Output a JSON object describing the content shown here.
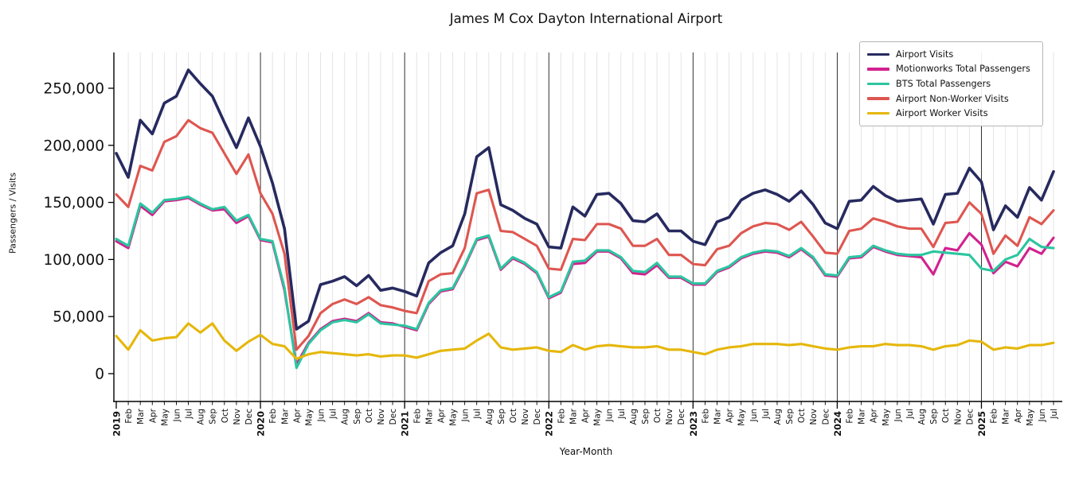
{
  "title": "James M Cox Dayton International Airport",
  "axes": {
    "xlabel": "Year-Month",
    "ylabel": "Passengers / Visits"
  },
  "legend": {
    "position": "upper right",
    "items": [
      "Airport Visits",
      "Motionworks Total Passengers",
      "BTS Total Passengers",
      "Airport Non-Worker Visits",
      "Airport Worker Visits"
    ]
  },
  "colors": {
    "airport_visits": "#272a5f",
    "motionworks_total_passengers": "#d2218f",
    "bts_total_passengers": "#2cc5a0",
    "airport_non_worker_visits": "#de5650",
    "airport_worker_visits": "#e5b70b",
    "month_gridline": "#e4e4e4",
    "year_gridline": "#1a1a1a",
    "axis": "#000000"
  },
  "chart_data": {
    "type": "line",
    "title": "James M Cox Dayton International Airport",
    "xlabel": "Year-Month",
    "ylabel": "Passengers / Visits",
    "ylim": [
      0,
      281000
    ],
    "yticks": [
      0,
      50000,
      100000,
      150000,
      200000,
      250000
    ],
    "ytick_labels": [
      "0",
      "50,000",
      "100,000",
      "150,000",
      "200,000",
      "250,000"
    ],
    "grid": "light vertical gridline at every month; dark vertical line at every January (year boundary); no horizontal gridlines",
    "x_tick_labels": [
      "2019",
      "Feb",
      "Mar",
      "Apr",
      "May",
      "Jun",
      "Jul",
      "Aug",
      "Sep",
      "Oct",
      "Nov",
      "Dec",
      "2020",
      "Feb",
      "Mar",
      "Apr",
      "May",
      "Jun",
      "Jul",
      "Aug",
      "Sep",
      "Oct",
      "Nov",
      "Dec",
      "2021",
      "Feb",
      "Mar",
      "Apr",
      "May",
      "Jun",
      "Jul",
      "Aug",
      "Sep",
      "Oct",
      "Nov",
      "Dec",
      "2022",
      "Feb",
      "Mar",
      "Apr",
      "May",
      "Jun",
      "Jul",
      "Aug",
      "Sep",
      "Oct",
      "Nov",
      "Dec",
      "2023",
      "Feb",
      "Mar",
      "Apr",
      "May",
      "Jun",
      "Jul",
      "Aug",
      "Sep",
      "Oct",
      "Nov",
      "Dec",
      "2024",
      "Feb",
      "Mar",
      "Apr",
      "May",
      "Jun",
      "Jul",
      "Aug",
      "Sep",
      "Oct",
      "Nov",
      "Dec",
      "2025",
      "Feb",
      "Mar",
      "Apr",
      "May",
      "Jun",
      "Jul"
    ],
    "series": [
      {
        "name": "Airport Visits",
        "color": "#272a5f",
        "values": [
          193000,
          172000,
          222000,
          210000,
          237000,
          243000,
          266000,
          254000,
          243000,
          220000,
          198000,
          224000,
          199000,
          167000,
          127000,
          39000,
          46000,
          78000,
          81000,
          85000,
          77000,
          86000,
          73000,
          75000,
          72000,
          68000,
          97000,
          106000,
          112000,
          140000,
          190000,
          198000,
          148000,
          143000,
          136000,
          131000,
          111000,
          110000,
          146000,
          138000,
          157000,
          158000,
          149000,
          134000,
          133000,
          140000,
          125000,
          125000,
          116000,
          113000,
          133000,
          137000,
          152000,
          158000,
          161000,
          157000,
          151000,
          160000,
          148000,
          132000,
          127000,
          151000,
          152000,
          164000,
          156000,
          151000,
          152000,
          153000,
          131000,
          157000,
          158000,
          180000,
          168000,
          126000,
          147000,
          137000,
          163000,
          152000,
          177000
        ]
      },
      {
        "name": "Motionworks Total Passengers",
        "color": "#d2218f",
        "values": [
          116000,
          110000,
          147000,
          139000,
          151000,
          152000,
          154000,
          148000,
          143000,
          144000,
          132000,
          138000,
          117000,
          115000,
          73000,
          8000,
          27000,
          39000,
          46000,
          48000,
          46000,
          53000,
          45000,
          44000,
          41000,
          38000,
          61000,
          72000,
          74000,
          94000,
          117000,
          120000,
          91000,
          101000,
          96000,
          88000,
          66000,
          71000,
          96000,
          97000,
          107000,
          107000,
          101000,
          88000,
          87000,
          95000,
          84000,
          84000,
          78000,
          78000,
          89000,
          93000,
          101000,
          105000,
          107000,
          106000,
          102000,
          109000,
          101000,
          86000,
          85000,
          101000,
          102000,
          111000,
          107000,
          104000,
          103000,
          102000,
          87000,
          110000,
          108000,
          123000,
          113000,
          88000,
          98000,
          94000,
          110000,
          105000,
          119000
        ]
      },
      {
        "name": "BTS Total Passengers",
        "color": "#2cc5a0",
        "values": [
          118000,
          112000,
          149000,
          141000,
          152000,
          153000,
          155000,
          149000,
          144000,
          146000,
          134000,
          139000,
          118000,
          116000,
          75000,
          5000,
          26000,
          38000,
          45000,
          47000,
          45000,
          52000,
          44000,
          43000,
          42000,
          39000,
          62000,
          73000,
          75000,
          95000,
          118000,
          121000,
          92000,
          102000,
          97000,
          89000,
          67000,
          72000,
          98000,
          99000,
          108000,
          108000,
          102000,
          90000,
          89000,
          97000,
          85000,
          85000,
          79000,
          79000,
          90000,
          94000,
          102000,
          106000,
          108000,
          107000,
          103000,
          110000,
          102000,
          87000,
          86000,
          102000,
          103000,
          112000,
          108000,
          105000,
          104000,
          104000,
          107000,
          106000,
          105000,
          104000,
          92000,
          90000,
          100000,
          104000,
          118000,
          111000,
          110000
        ]
      },
      {
        "name": "Airport Non-Worker Visits",
        "color": "#de5650",
        "values": [
          157000,
          146000,
          182000,
          178000,
          203000,
          208000,
          222000,
          215000,
          211000,
          193000,
          175000,
          192000,
          158000,
          140000,
          105000,
          21000,
          33000,
          53000,
          61000,
          65000,
          61000,
          67000,
          60000,
          58000,
          55000,
          53000,
          81000,
          87000,
          88000,
          110000,
          158000,
          161000,
          125000,
          124000,
          118000,
          112000,
          92000,
          91000,
          118000,
          117000,
          131000,
          131000,
          127000,
          112000,
          112000,
          118000,
          104000,
          104000,
          96000,
          95000,
          109000,
          112000,
          123000,
          129000,
          132000,
          131000,
          126000,
          133000,
          120000,
          106000,
          105000,
          125000,
          127000,
          136000,
          133000,
          129000,
          127000,
          127000,
          111000,
          132000,
          133000,
          150000,
          140000,
          105000,
          121000,
          112000,
          137000,
          131000,
          143000
        ]
      },
      {
        "name": "Airport Worker Visits",
        "color": "#e5b70b",
        "values": [
          33000,
          21000,
          38000,
          29000,
          31000,
          32000,
          44000,
          36000,
          44000,
          29000,
          20000,
          28000,
          34000,
          26000,
          24000,
          13000,
          17000,
          19000,
          18000,
          17000,
          16000,
          17000,
          15000,
          16000,
          16000,
          14000,
          17000,
          20000,
          21000,
          22000,
          29000,
          35000,
          23000,
          21000,
          22000,
          23000,
          20000,
          19000,
          25000,
          21000,
          24000,
          25000,
          24000,
          23000,
          23000,
          24000,
          21000,
          21000,
          19000,
          17000,
          21000,
          23000,
          24000,
          26000,
          26000,
          26000,
          25000,
          26000,
          24000,
          22000,
          21000,
          23000,
          24000,
          24000,
          26000,
          25000,
          25000,
          24000,
          21000,
          24000,
          25000,
          29000,
          28000,
          21000,
          23000,
          22000,
          25000,
          25000,
          27000
        ]
      }
    ]
  }
}
